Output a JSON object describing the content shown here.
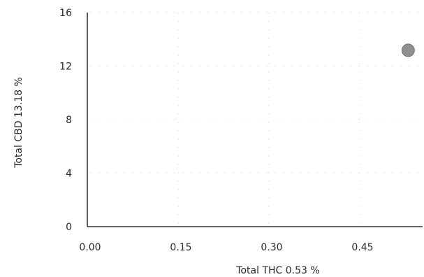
{
  "chart_data": {
    "type": "scatter",
    "title": "",
    "xlabel": "Total THC 0.53 %",
    "ylabel": "Total CBD 13.18 %",
    "xlim": [
      0,
      0.55
    ],
    "ylim": [
      0,
      16
    ],
    "x_ticks": [
      "0.00",
      "0.15",
      "0.30",
      "0.45"
    ],
    "x_tick_values": [
      0,
      0.15,
      0.3,
      0.45
    ],
    "y_ticks": [
      "16",
      "12",
      "8",
      "4",
      "0"
    ],
    "y_tick_values": [
      16,
      12,
      8,
      4,
      0
    ],
    "grid": true,
    "series": [
      {
        "x": [
          0.53
        ],
        "y": [
          13.18
        ],
        "color": "#8f8f8f"
      }
    ]
  }
}
